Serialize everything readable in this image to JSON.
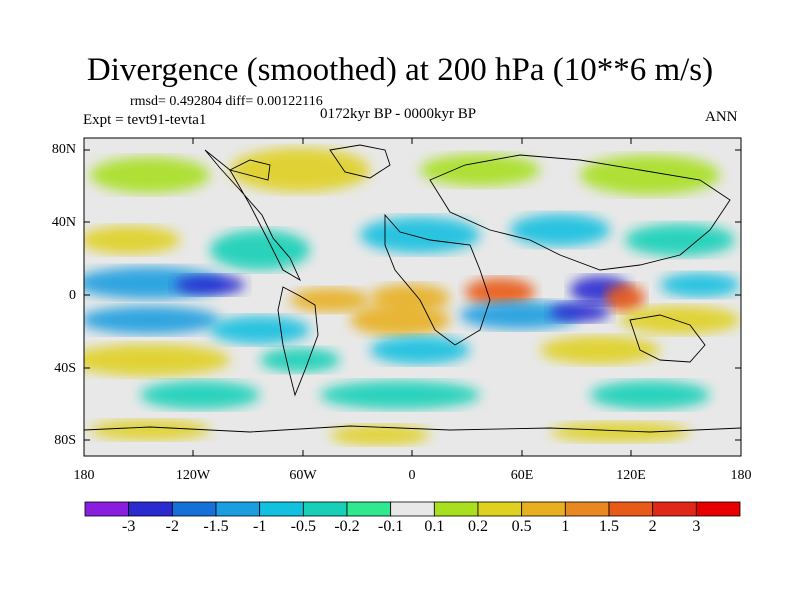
{
  "title": "Divergence (smoothed) at 200 hPa (10**6 m/s)",
  "stats": "rmsd= 0.492804 diff= 0.00122116",
  "expt": "Expt = tevt91-tevta1",
  "period": "0172kyr BP - 0000kyr BP",
  "season": "ANN",
  "lat_ticks": [
    "80N",
    "40N",
    "0",
    "40S",
    "80S"
  ],
  "lon_ticks": [
    "180",
    "120W",
    "60W",
    "0",
    "60E",
    "120E",
    "180"
  ],
  "colorbar": {
    "labels": [
      "-3",
      "-2",
      "-1.5",
      "-1",
      "-0.5",
      "-0.2",
      "-0.1",
      "0.1",
      "0.2",
      "0.5",
      "1",
      "1.5",
      "2",
      "3"
    ],
    "colors": [
      "#8a1ee0",
      "#2a2ad0",
      "#1670d8",
      "#1a9ee0",
      "#12c0e0",
      "#18d0b8",
      "#30e890",
      "#e8e8e8",
      "#a8e020",
      "#e0d020",
      "#e8b020",
      "#e88820",
      "#e85a18",
      "#e02818",
      "#e80000"
    ]
  }
}
